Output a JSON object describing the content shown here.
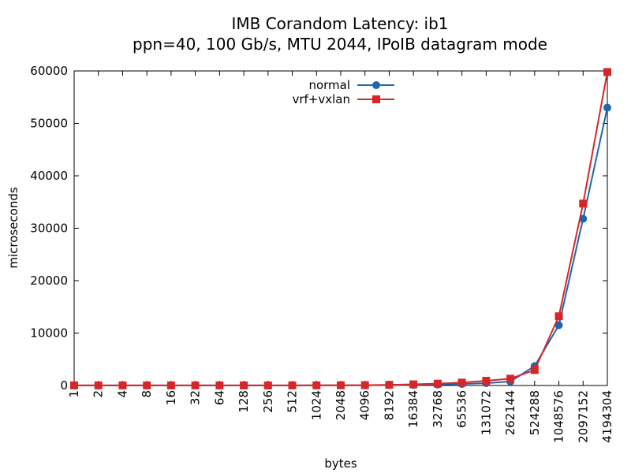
{
  "chart_data": {
    "type": "line",
    "title": "IMB Corandom Latency: ib1",
    "subtitle": "ppn=40, 100 Gb/s, MTU 2044, IPoIB datagram mode",
    "xlabel": "bytes",
    "ylabel": "microseconds",
    "ylim": [
      0,
      60000
    ],
    "yticks": [
      "0",
      "10000",
      "20000",
      "30000",
      "40000",
      "50000",
      "60000"
    ],
    "categories": [
      "1",
      "2",
      "4",
      "8",
      "16",
      "32",
      "64",
      "128",
      "256",
      "512",
      "1024",
      "2048",
      "4096",
      "8192",
      "16384",
      "32768",
      "65536",
      "131072",
      "262144",
      "524288",
      "1048576",
      "2097152",
      "4194304"
    ],
    "legend_position": "top-center",
    "grid": false,
    "series": [
      {
        "name": "normal",
        "color": "#1f66b0",
        "marker": "circle",
        "values": [
          20,
          20,
          20,
          20,
          20,
          20,
          20,
          20,
          20,
          25,
          30,
          35,
          45,
          70,
          110,
          180,
          280,
          450,
          750,
          3700,
          11500,
          31800,
          53000
        ]
      },
      {
        "name": "vrf+vxlan",
        "color": "#d62728",
        "marker": "square",
        "values": [
          20,
          20,
          20,
          20,
          20,
          20,
          20,
          20,
          20,
          25,
          30,
          40,
          60,
          130,
          220,
          350,
          550,
          900,
          1300,
          2950,
          13200,
          34700,
          59800
        ]
      }
    ]
  }
}
